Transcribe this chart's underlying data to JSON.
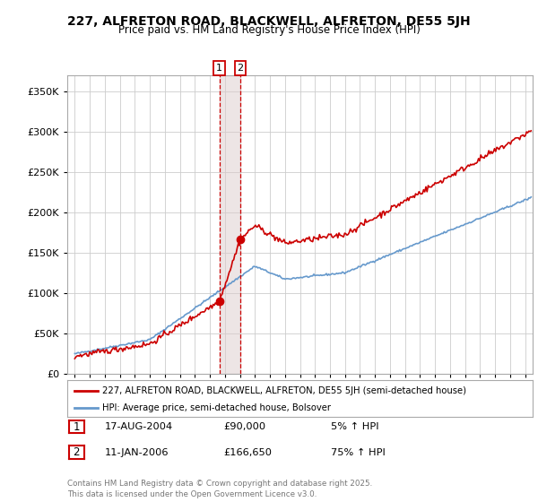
{
  "title": "227, ALFRETON ROAD, BLACKWELL, ALFRETON, DE55 5JH",
  "subtitle": "Price paid vs. HM Land Registry's House Price Index (HPI)",
  "legend_label_red": "227, ALFRETON ROAD, BLACKWELL, ALFRETON, DE55 5JH (semi-detached house)",
  "legend_label_blue": "HPI: Average price, semi-detached house, Bolsover",
  "table_rows": [
    {
      "num": "1",
      "date": "17-AUG-2004",
      "price": "£90,000",
      "hpi": "5% ↑ HPI"
    },
    {
      "num": "2",
      "date": "11-JAN-2006",
      "price": "£166,650",
      "hpi": "75% ↑ HPI"
    }
  ],
  "footer": "Contains HM Land Registry data © Crown copyright and database right 2025.\nThis data is licensed under the Open Government Licence v3.0.",
  "vline1_year": 2004.63,
  "vline2_year": 2006.03,
  "purchase1_year": 2004.63,
  "purchase1_price": 90000,
  "purchase2_year": 2006.03,
  "purchase2_price": 166650,
  "ylim": [
    0,
    370000
  ],
  "xlim_start": 1994.5,
  "xlim_end": 2025.5,
  "background_color": "#ffffff",
  "grid_color": "#cccccc",
  "red_color": "#cc0000",
  "blue_color": "#6699cc",
  "vline_color": "#cc0000",
  "vline_shade_color": "#ddcccc",
  "yticks": [
    0,
    50000,
    100000,
    150000,
    200000,
    250000,
    300000,
    350000
  ],
  "xticks": [
    1995,
    1996,
    1997,
    1998,
    1999,
    2000,
    2001,
    2002,
    2003,
    2004,
    2005,
    2006,
    2007,
    2008,
    2009,
    2010,
    2011,
    2012,
    2013,
    2014,
    2015,
    2016,
    2017,
    2018,
    2019,
    2020,
    2021,
    2022,
    2023,
    2024,
    2025
  ]
}
